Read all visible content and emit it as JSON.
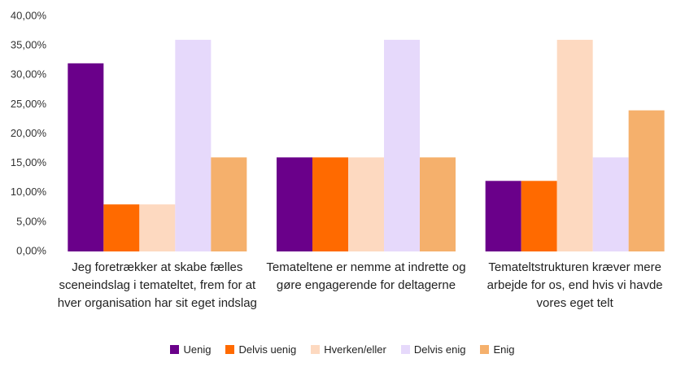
{
  "chart_data": {
    "type": "bar",
    "categories": [
      "Jeg foretrækker at skabe fælles sceneindslag i temateltet, frem for at hver organisation har sit eget indslag",
      "Temateltene er nemme at indrette og gøre engagerende for deltagerne",
      "Temateltstrukturen kræver mere arbejde for os, end hvis vi havde vores eget telt"
    ],
    "series": [
      {
        "name": "Uenig",
        "color": "#6a008a",
        "values": [
          32,
          16,
          12
        ]
      },
      {
        "name": "Delvis uenig",
        "color": "#ff6a00",
        "values": [
          8,
          16,
          12
        ]
      },
      {
        "name": "Hverken/eller",
        "color": "#fdd9c0",
        "values": [
          8,
          16,
          36
        ]
      },
      {
        "name": "Delvis enig",
        "color": "#e6d9fb",
        "values": [
          36,
          36,
          16
        ]
      },
      {
        "name": "Enig",
        "color": "#f5b06c",
        "values": [
          16,
          16,
          24
        ]
      }
    ],
    "ylim": [
      0,
      40
    ],
    "yticks": [
      {
        "value": 0,
        "label": "0,00%"
      },
      {
        "value": 5,
        "label": "5,00%"
      },
      {
        "value": 10,
        "label": "10,00%"
      },
      {
        "value": 15,
        "label": "15,00%"
      },
      {
        "value": 20,
        "label": "20,00%"
      },
      {
        "value": 25,
        "label": "25,00%"
      },
      {
        "value": 30,
        "label": "30,00%"
      },
      {
        "value": 35,
        "label": "35,00%"
      },
      {
        "value": 40,
        "label": "40,00%"
      }
    ],
    "grid": false
  }
}
